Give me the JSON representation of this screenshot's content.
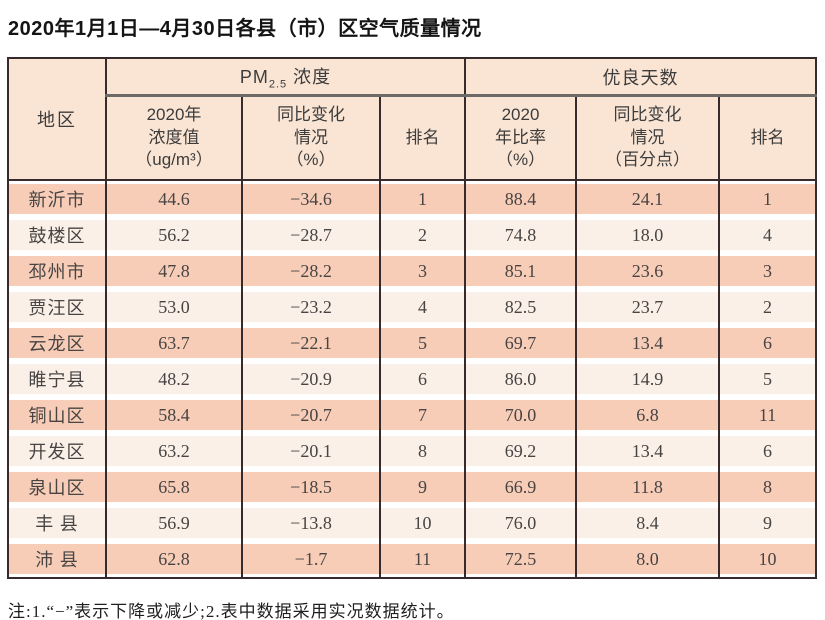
{
  "title": "2020年1月1日—4月30日各县（市）区空气质量情况",
  "table": {
    "region_header": "地区",
    "pm_group": {
      "label_prefix": "PM",
      "label_sub": "2.5",
      "label_suffix": " 浓度",
      "col_value": "2020年\n浓度值\n（ug/m³）",
      "col_change": "同比变化\n情况\n（%）",
      "col_rank": "排名"
    },
    "good_group": {
      "label": "优良天数",
      "col_ratio": "2020\n年比率\n（%）",
      "col_change": "同比变化\n情况\n（百分点）",
      "col_rank": "排名"
    },
    "rows": [
      {
        "region": "新沂市",
        "pm_value": "44.6",
        "pm_change": "−34.6",
        "pm_rank": "1",
        "good_ratio": "88.4",
        "good_change": "24.1",
        "good_rank": "1"
      },
      {
        "region": "鼓楼区",
        "pm_value": "56.2",
        "pm_change": "−28.7",
        "pm_rank": "2",
        "good_ratio": "74.8",
        "good_change": "18.0",
        "good_rank": "4"
      },
      {
        "region": "邳州市",
        "pm_value": "47.8",
        "pm_change": "−28.2",
        "pm_rank": "3",
        "good_ratio": "85.1",
        "good_change": "23.6",
        "good_rank": "3"
      },
      {
        "region": "贾汪区",
        "pm_value": "53.0",
        "pm_change": "−23.2",
        "pm_rank": "4",
        "good_ratio": "82.5",
        "good_change": "23.7",
        "good_rank": "2"
      },
      {
        "region": "云龙区",
        "pm_value": "63.7",
        "pm_change": "−22.1",
        "pm_rank": "5",
        "good_ratio": "69.7",
        "good_change": "13.4",
        "good_rank": "6"
      },
      {
        "region": "睢宁县",
        "pm_value": "48.2",
        "pm_change": "−20.9",
        "pm_rank": "6",
        "good_ratio": "86.0",
        "good_change": "14.9",
        "good_rank": "5"
      },
      {
        "region": "铜山区",
        "pm_value": "58.4",
        "pm_change": "−20.7",
        "pm_rank": "7",
        "good_ratio": "70.0",
        "good_change": "6.8",
        "good_rank": "11"
      },
      {
        "region": "开发区",
        "pm_value": "63.2",
        "pm_change": "−20.1",
        "pm_rank": "8",
        "good_ratio": "69.2",
        "good_change": "13.4",
        "good_rank": "6"
      },
      {
        "region": "泉山区",
        "pm_value": "65.8",
        "pm_change": "−18.5",
        "pm_rank": "9",
        "good_ratio": "66.9",
        "good_change": "11.8",
        "good_rank": "8"
      },
      {
        "region": "丰 县",
        "pm_value": "56.9",
        "pm_change": "−13.8",
        "pm_rank": "10",
        "good_ratio": "76.0",
        "good_change": "8.4",
        "good_rank": "9"
      },
      {
        "region": "沛 县",
        "pm_value": "62.8",
        "pm_change": "−1.7",
        "pm_rank": "11",
        "good_ratio": "72.5",
        "good_change": "8.0",
        "good_rank": "10"
      }
    ]
  },
  "footnote": "注:1.“−”表示下降或减少;2.表中数据采用实况数据统计。"
}
